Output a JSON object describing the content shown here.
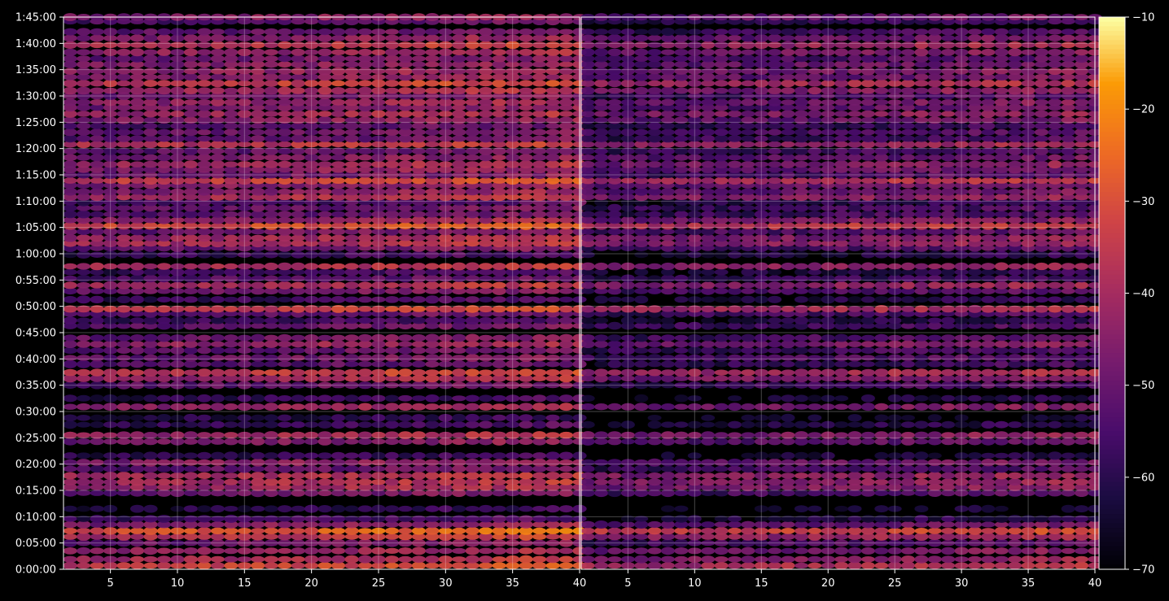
{
  "chart_data": {
    "type": "heatmap",
    "title": "",
    "xlabel": "",
    "ylabel": "",
    "colormap": "inferno",
    "background": "#000000",
    "grid": true,
    "legend": "colorbar-right",
    "panels": [
      {
        "name": "",
        "xlim": [
          1.5,
          40
        ],
        "xticks": [
          "5",
          "10",
          "15",
          "20",
          "25",
          "30",
          "35",
          "40"
        ],
        "xtick_values": [
          5,
          10,
          15,
          20,
          25,
          30,
          35,
          40
        ]
      },
      {
        "name": "",
        "xlim": [
          1.5,
          40
        ],
        "xticks": [
          "5",
          "10",
          "15",
          "20",
          "25",
          "30",
          "35",
          "40"
        ],
        "xtick_values": [
          5,
          10,
          15,
          20,
          25,
          30,
          35,
          40
        ]
      }
    ],
    "yaxis": {
      "unit": "time (h:mm:ss)",
      "ylim_minutes": [
        0,
        105
      ],
      "ticks": [
        "0:00:00",
        "0:05:00",
        "0:10:00",
        "0:15:00",
        "0:20:00",
        "0:25:00",
        "0:30:00",
        "0:35:00",
        "0:40:00",
        "0:45:00",
        "0:50:00",
        "0:55:00",
        "1:00:00",
        "1:05:00",
        "1:10:00",
        "1:15:00",
        "1:20:00",
        "1:25:00",
        "1:30:00",
        "1:35:00",
        "1:40:00",
        "1:45:00"
      ],
      "tick_minutes": [
        0,
        5,
        10,
        15,
        20,
        25,
        30,
        35,
        40,
        45,
        50,
        55,
        60,
        65,
        70,
        75,
        80,
        85,
        90,
        95,
        100,
        105
      ]
    },
    "colorbar": {
      "range": [
        -70,
        -10
      ],
      "ticks": [
        "−10",
        "−20",
        "−30",
        "−40",
        "−50",
        "−60",
        "−70"
      ],
      "tick_values": [
        -10,
        -20,
        -30,
        -40,
        -50,
        -60,
        -70
      ]
    },
    "rows_minutes_level": [
      [
        0.7,
        -32
      ],
      [
        1.9,
        -38
      ],
      [
        3.5,
        -42
      ],
      [
        5.0,
        -48
      ],
      [
        6.2,
        -36
      ],
      [
        7.3,
        -27
      ],
      [
        8.5,
        -44
      ],
      [
        9.6,
        -56
      ],
      [
        11.5,
        -60
      ],
      [
        14.5,
        -48
      ],
      [
        15.6,
        -40
      ],
      [
        16.6,
        -38
      ],
      [
        17.8,
        -38
      ],
      [
        19.1,
        -50
      ],
      [
        20.3,
        -44
      ],
      [
        21.6,
        -58
      ],
      [
        24.3,
        -46
      ],
      [
        25.5,
        -40
      ],
      [
        27.5,
        -56
      ],
      [
        28.8,
        -60
      ],
      [
        30.9,
        -42
      ],
      [
        32.5,
        -58
      ],
      [
        35.0,
        -50
      ],
      [
        36.3,
        -40
      ],
      [
        37.4,
        -34
      ],
      [
        39.0,
        -52
      ],
      [
        40.2,
        -48
      ],
      [
        41.6,
        -50
      ],
      [
        42.8,
        -42
      ],
      [
        44.0,
        -48
      ],
      [
        46.3,
        -50
      ],
      [
        47.3,
        -56
      ],
      [
        48.6,
        -50
      ],
      [
        49.5,
        -34
      ],
      [
        51.3,
        -56
      ],
      [
        52.9,
        -48
      ],
      [
        54.0,
        -38
      ],
      [
        55.3,
        -52
      ],
      [
        56.5,
        -56
      ],
      [
        57.6,
        -38
      ],
      [
        59.8,
        -56
      ],
      [
        61.1,
        -48
      ],
      [
        62.0,
        -38
      ],
      [
        63.0,
        -40
      ],
      [
        64.2,
        -48
      ],
      [
        65.3,
        -30
      ],
      [
        66.4,
        -42
      ],
      [
        67.5,
        -50
      ],
      [
        68.7,
        -50
      ],
      [
        69.8,
        -54
      ],
      [
        70.8,
        -38
      ],
      [
        71.8,
        -44
      ],
      [
        73.0,
        -44
      ],
      [
        73.9,
        -32
      ],
      [
        75.0,
        -48
      ],
      [
        76.0,
        -44
      ],
      [
        77.0,
        -40
      ],
      [
        78.3,
        -46
      ],
      [
        79.5,
        -50
      ],
      [
        80.8,
        -36
      ],
      [
        81.9,
        -50
      ],
      [
        83.1,
        -48
      ],
      [
        84.3,
        -52
      ],
      [
        85.4,
        -44
      ],
      [
        86.6,
        -40
      ],
      [
        87.8,
        -46
      ],
      [
        88.8,
        -42
      ],
      [
        90.0,
        -48
      ],
      [
        91.0,
        -40
      ],
      [
        92.4,
        -34
      ],
      [
        93.6,
        -44
      ],
      [
        94.7,
        -42
      ],
      [
        96.0,
        -44
      ],
      [
        97.1,
        -48
      ],
      [
        98.3,
        -42
      ],
      [
        99.7,
        -36
      ],
      [
        101.0,
        -44
      ],
      [
        102.2,
        -50
      ],
      [
        104.2,
        -52
      ],
      [
        105.0,
        -44
      ]
    ],
    "panel_level_offset": [
      0,
      -6
    ],
    "trend_per_x": 0.2
  }
}
